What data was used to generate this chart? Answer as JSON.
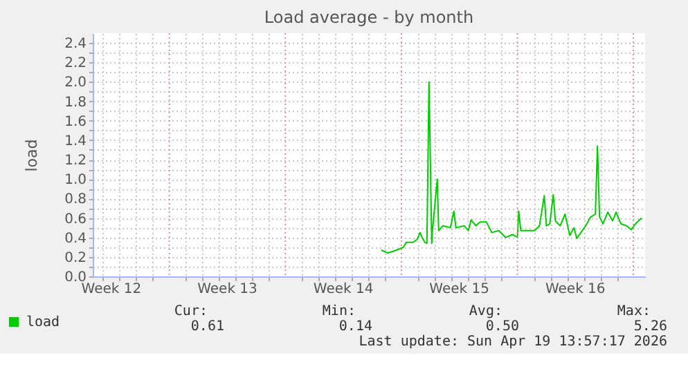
{
  "chart_data": {
    "type": "line",
    "title": "Load average - by month",
    "ylabel": "load",
    "x": [
      "2026-04-03T19:00",
      "2026-04-04T04:00",
      "2026-04-04T17:00",
      "2026-04-05T03:00",
      "2026-04-05T07:00",
      "2026-04-05T17:00",
      "2026-04-05T23:00",
      "2026-04-06T03:00",
      "2026-04-06T06:00",
      "2026-04-06T10:00",
      "2026-04-06T13:00",
      "2026-04-06T16:00",
      "2026-04-06T20:00",
      "2026-04-06T21:00",
      "2026-04-07T04:00",
      "2026-04-07T06:00",
      "2026-04-07T12:00",
      "2026-04-07T23:00",
      "2026-04-08T04:00",
      "2026-04-08T07:00",
      "2026-04-08T19:00",
      "2026-04-09T01:00",
      "2026-04-09T05:00",
      "2026-04-09T12:00",
      "2026-04-09T18:00",
      "2026-04-10T03:00",
      "2026-04-10T11:00",
      "2026-04-10T21:00",
      "2026-04-11T07:00",
      "2026-04-11T17:00",
      "2026-04-12T00:00",
      "2026-04-12T02:00",
      "2026-04-12T05:00",
      "2026-04-12T15:00",
      "2026-04-13T01:00",
      "2026-04-13T08:00",
      "2026-04-13T15:00",
      "2026-04-13T18:00",
      "2026-04-13T23:00",
      "2026-04-14T04:00",
      "2026-04-14T07:00",
      "2026-04-14T14:00",
      "2026-04-14T21:00",
      "2026-04-15T04:00",
      "2026-04-15T10:00",
      "2026-04-15T14:00",
      "2026-04-15T20:00",
      "2026-04-16T03:00",
      "2026-04-16T10:00",
      "2026-04-16T17:00",
      "2026-04-16T20:00",
      "2026-04-16T23:00",
      "2026-04-17T04:00",
      "2026-04-17T11:00",
      "2026-04-17T18:00",
      "2026-04-17T23:00",
      "2026-04-18T06:00",
      "2026-04-18T14:00",
      "2026-04-18T21:00",
      "2026-04-19T03:00",
      "2026-04-19T12:00"
    ],
    "series": [
      {
        "name": "load",
        "color": "#00cc00",
        "values": [
          0.27,
          0.24,
          0.27,
          0.3,
          0.35,
          0.35,
          0.38,
          0.45,
          0.4,
          0.35,
          0.34,
          2.0,
          0.34,
          0.47,
          1.0,
          0.47,
          0.52,
          0.5,
          0.67,
          0.5,
          0.52,
          0.47,
          0.58,
          0.52,
          0.56,
          0.56,
          0.45,
          0.47,
          0.4,
          0.43,
          0.4,
          0.67,
          0.47,
          0.47,
          0.47,
          0.52,
          0.83,
          0.52,
          0.54,
          0.84,
          0.57,
          0.52,
          0.64,
          0.42,
          0.5,
          0.39,
          0.45,
          0.52,
          0.61,
          0.64,
          1.34,
          0.61,
          0.54,
          0.66,
          0.57,
          0.66,
          0.54,
          0.52,
          0.48,
          0.54,
          0.6
        ]
      }
    ],
    "xlim": [
      "2026-03-17T09:00",
      "2026-04-19T17:00"
    ],
    "xticks": [
      {
        "value": "2026-03-18",
        "label": null
      },
      {
        "value": "2026-03-18T12:00",
        "label": "Week 12"
      },
      {
        "value": "2026-03-19",
        "label": null
      },
      {
        "value": "2026-03-20",
        "label": null
      },
      {
        "value": "2026-03-21",
        "label": null
      },
      {
        "value": "2026-03-23",
        "label": null
      },
      {
        "value": "2026-03-24",
        "label": null
      },
      {
        "value": "2026-03-25",
        "label": null
      },
      {
        "value": "2026-03-25T12:00",
        "label": "Week 13"
      },
      {
        "value": "2026-03-26",
        "label": null
      },
      {
        "value": "2026-03-27",
        "label": null
      },
      {
        "value": "2026-03-28",
        "label": null
      },
      {
        "value": "2026-03-30",
        "label": null
      },
      {
        "value": "2026-03-31",
        "label": null
      },
      {
        "value": "2026-04-01",
        "label": null
      },
      {
        "value": "2026-04-01T12:00",
        "label": "Week 14"
      },
      {
        "value": "2026-04-02",
        "label": null
      },
      {
        "value": "2026-04-03",
        "label": null
      },
      {
        "value": "2026-04-04",
        "label": null
      },
      {
        "value": "2026-04-06",
        "label": null
      },
      {
        "value": "2026-04-07",
        "label": null
      },
      {
        "value": "2026-04-08",
        "label": null
      },
      {
        "value": "2026-04-08T12:00",
        "label": "Week 15"
      },
      {
        "value": "2026-04-09",
        "label": null
      },
      {
        "value": "2026-04-10",
        "label": null
      },
      {
        "value": "2026-04-11",
        "label": null
      },
      {
        "value": "2026-04-13",
        "label": null
      },
      {
        "value": "2026-04-14",
        "label": null
      },
      {
        "value": "2026-04-15",
        "label": null
      },
      {
        "value": "2026-04-15T12:00",
        "label": "Week 16"
      },
      {
        "value": "2026-04-16",
        "label": null
      },
      {
        "value": "2026-04-17",
        "label": null
      },
      {
        "value": "2026-04-18",
        "label": null
      }
    ],
    "ylim": [
      0,
      2.5
    ],
    "yticks": [
      {
        "value": 0,
        "label": "0.0"
      },
      {
        "value": 0.1,
        "label": null
      },
      {
        "value": 0.2,
        "label": "0.2"
      },
      {
        "value": 0.3,
        "label": null
      },
      {
        "value": 0.4,
        "label": "0.4"
      },
      {
        "value": 0.5,
        "label": null
      },
      {
        "value": 0.6,
        "label": "0.6"
      },
      {
        "value": 0.7,
        "label": null
      },
      {
        "value": 0.8,
        "label": "0.8"
      },
      {
        "value": 0.9,
        "label": null
      },
      {
        "value": 1,
        "label": "1.0"
      },
      {
        "value": 1.1,
        "label": null
      },
      {
        "value": 1.2,
        "label": "1.2"
      },
      {
        "value": 1.3,
        "label": null
      },
      {
        "value": 1.4,
        "label": "1.4"
      },
      {
        "value": 1.5,
        "label": null
      },
      {
        "value": 1.6,
        "label": "1.6"
      },
      {
        "value": 1.7,
        "label": null
      },
      {
        "value": 1.8,
        "label": "1.8"
      },
      {
        "value": 1.9,
        "label": null
      },
      {
        "value": 2,
        "label": "2.0"
      },
      {
        "value": 2.1,
        "label": null
      },
      {
        "value": 2.2,
        "label": "2.2"
      },
      {
        "value": 2.3,
        "label": null
      },
      {
        "value": 2.4,
        "label": "2.4"
      }
    ],
    "ref_lines": [
      {
        "axis": "x",
        "value": "2026-03-22",
        "color": "#e08c8c",
        "line_style": "dotted"
      },
      {
        "axis": "x",
        "value": "2026-03-29",
        "color": "#e08c8c",
        "line_style": "dotted"
      },
      {
        "axis": "x",
        "value": "2026-04-05",
        "color": "#e08c8c",
        "line_style": "dotted"
      },
      {
        "axis": "x",
        "value": "2026-04-12",
        "color": "#e08c8c",
        "line_style": "dotted"
      },
      {
        "axis": "x",
        "value": "2026-04-19",
        "color": "#e08c8c",
        "line_style": "dotted"
      }
    ],
    "grid": true,
    "legend": "bottom left",
    "marker": "none",
    "line_style": "solid",
    "annotations": [
      "Cur:",
      "Min:",
      "Avg:",
      "Max:",
      "0.61",
      "0.14",
      "0.50",
      "5.26",
      "Last update: Sun Apr 19 13:57:17 2026"
    ]
  }
}
